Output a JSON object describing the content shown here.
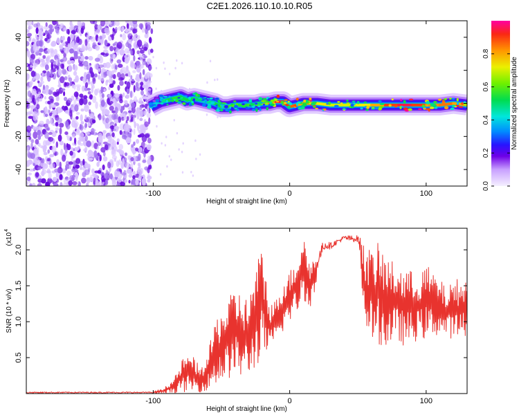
{
  "title": "C2E1.2026.110.10.10.R05",
  "colors": {
    "snr_line": "#e8332e",
    "axis": "#000000",
    "blob_light": "#d9c2ff",
    "blob_mid": "#a070f0",
    "blob_dark": "#6a10e0"
  },
  "chart_data": [
    {
      "type": "heatmap",
      "name": "spectrogram",
      "xlabel": "Height of straight line (km)",
      "ylabel": "Frequency (Hz)",
      "xlim": [
        -193,
        130
      ],
      "ylim": [
        -50,
        50
      ],
      "xticks": [
        -100,
        0,
        100
      ],
      "xtick_labels": [
        "-100",
        "0",
        "100"
      ],
      "yticks": [
        -40,
        -20,
        0,
        20,
        40
      ],
      "ytick_labels": [
        "-40",
        "-20",
        "0",
        "20",
        "40"
      ],
      "noise_region_km": [
        -193,
        -101
      ],
      "ridge": {
        "x": [
          -102,
          -95,
          -90,
          -85,
          -80,
          -75,
          -70,
          -65,
          -60,
          -55,
          -50,
          -45,
          -40,
          -35,
          -30,
          -25,
          -20,
          -15,
          -10,
          -5,
          0,
          5,
          10,
          15,
          20,
          30,
          40,
          50,
          60,
          70,
          80,
          90,
          100,
          110,
          120,
          130
        ],
        "freq_hz": [
          -2,
          1,
          2,
          3,
          4,
          2,
          3,
          2,
          1,
          0,
          -2,
          -2,
          -1,
          -1,
          -1,
          -1,
          0,
          0,
          1,
          1,
          -2,
          -1,
          0,
          0,
          0,
          -1,
          -1,
          -1,
          -1,
          -1,
          -1,
          -1,
          -1,
          -1,
          0,
          -1
        ],
        "amplitude": [
          0.35,
          0.45,
          0.5,
          0.55,
          0.55,
          0.5,
          0.55,
          0.45,
          0.45,
          0.5,
          0.55,
          0.6,
          0.55,
          0.55,
          0.55,
          0.6,
          0.6,
          0.7,
          0.95,
          0.95,
          0.9,
          0.85,
          0.75,
          0.9,
          0.75,
          0.7,
          0.7,
          0.7,
          0.75,
          0.85,
          0.95,
          0.95,
          0.85,
          0.8,
          0.9,
          0.7
        ]
      },
      "colorbar": {
        "label": "Normalized spectral amplitude",
        "range": [
          0,
          1
        ],
        "ticks": [
          0.0,
          0.2,
          0.4,
          0.6,
          0.8
        ],
        "tick_labels": [
          "0.0",
          "0.2",
          "0.4",
          "0.6",
          "0.8"
        ]
      }
    },
    {
      "type": "line",
      "name": "snr",
      "xlabel": "Height of straight line (km)",
      "ylabel": "SNR (10 * v/v)",
      "scale_label": "(x10",
      "scale_exponent": "4",
      "xlim": [
        -193,
        130
      ],
      "ylim": [
        0,
        2.3
      ],
      "xticks": [
        -100,
        0,
        100
      ],
      "xtick_labels": [
        "-100",
        "0",
        "100"
      ],
      "yticks": [
        0.5,
        1.0,
        1.5,
        2.0
      ],
      "ytick_labels": [
        "0.5",
        "1.0",
        "1.5",
        "2.0"
      ],
      "envelope": {
        "x": [
          -193,
          -100,
          -92,
          -85,
          -78,
          -72,
          -65,
          -60,
          -55,
          -50,
          -45,
          -40,
          -35,
          -30,
          -25,
          -20,
          -15,
          -10,
          -5,
          0,
          5,
          10,
          15,
          20,
          25,
          30,
          35,
          40,
          45,
          50,
          53,
          55,
          60,
          65,
          70,
          75,
          80,
          85,
          90,
          95,
          100,
          105,
          110,
          115,
          120,
          125,
          130
        ],
        "upper": [
          0.03,
          0.03,
          0.08,
          0.2,
          0.5,
          0.55,
          0.35,
          0.55,
          1.0,
          1.2,
          1.3,
          1.5,
          1.4,
          1.3,
          1.8,
          2.05,
          1.3,
          1.3,
          1.6,
          1.7,
          1.9,
          2.25,
          1.85,
          1.9,
          2.15,
          2.1,
          2.15,
          2.2,
          2.2,
          2.2,
          2.15,
          2.05,
          2.0,
          2.1,
          1.95,
          1.85,
          1.8,
          1.75,
          1.7,
          1.7,
          1.8,
          1.7,
          1.6,
          1.45,
          1.6,
          1.6,
          1.6
        ],
        "lower": [
          0.0,
          0.0,
          0.0,
          0.01,
          0.02,
          0.03,
          0.02,
          0.05,
          0.1,
          0.15,
          0.2,
          0.25,
          0.2,
          0.25,
          0.35,
          0.5,
          0.55,
          0.7,
          0.85,
          1.0,
          1.1,
          1.3,
          1.2,
          1.5,
          1.8,
          1.9,
          2.0,
          2.05,
          2.0,
          2.0,
          1.4,
          1.0,
          0.7,
          0.7,
          0.6,
          0.7,
          0.7,
          0.65,
          0.7,
          0.75,
          0.75,
          0.8,
          0.8,
          0.8,
          0.75,
          0.75,
          0.8
        ]
      }
    }
  ]
}
